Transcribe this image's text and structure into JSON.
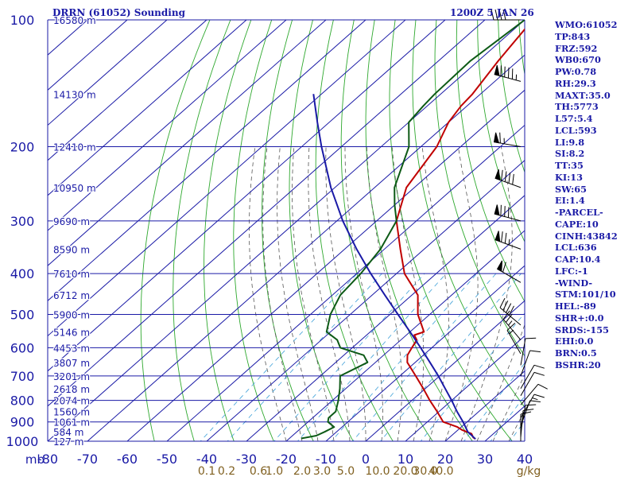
{
  "header": {
    "title_left": "DRRN (61052) Sounding",
    "title_right": "1200Z  5 JAN 26"
  },
  "colors": {
    "grid": "#1a1aa6",
    "temperature": "#c00000",
    "dewpoint": "#0d5a16",
    "parcel": "#1a1aa6",
    "dry_adiabat": "#2ea82e",
    "moist_adiabat": "#555555",
    "mixing_ratio": "#3ea0d8",
    "mixing_label": "#806020",
    "label": "#1a1aa6"
  },
  "indices": [
    "WMO:61052",
    "TP:843",
    "FRZ:592",
    "WB0:670",
    "PW:0.78",
    "RH:29.3",
    "MAXT:35.0",
    "TH:5773",
    "L57:5.4",
    "LCL:593",
    "LI:9.8",
    "SI:8.2",
    "TT:35",
    "KI:13",
    "SW:65",
    "EI:1.4",
    "-PARCEL-",
    "CAPE:10",
    "CINH:43842",
    "LCL:636",
    "CAP:10.4",
    "LFC:-1",
    "-WIND-",
    "STM:101/10",
    "HEL:-89",
    "SHR+:0.0",
    "SRDS:-155",
    "EHI:0.0",
    "BRN:0.5",
    "BSHR:20"
  ],
  "chart_data": {
    "type": "line",
    "title": "DRRN (61052) Sounding",
    "subtitle": "1200Z  5 JAN 26",
    "xlabel": "",
    "ylabel": "mb",
    "y_scale": "log",
    "x_range": [
      -80,
      40
    ],
    "p_range": [
      1000,
      100
    ],
    "skew_degrees_per_decade": 120,
    "grid": true,
    "pressure_levels": [
      100,
      200,
      300,
      400,
      500,
      600,
      700,
      800,
      900,
      1000
    ],
    "pressure_tick_labels": [
      "100",
      "200",
      "300",
      "400",
      "500",
      "600",
      "700",
      "800",
      "900",
      "1000"
    ],
    "temperature_ticks": [
      -80,
      -70,
      -60,
      -50,
      -40,
      -30,
      -20,
      -10,
      0,
      10,
      20,
      30,
      40
    ],
    "temperature_tick_labels": [
      "-80",
      "-70",
      "-60",
      "-50",
      "-40",
      "-30",
      "-20",
      "-10",
      "0",
      "10",
      "20",
      "30",
      "40"
    ],
    "mixing_ratio_ticks": [
      {
        "t": -40,
        "label": "0.1"
      },
      {
        "t": -35,
        "label": "0.2"
      },
      {
        "t": -27,
        "label": "0.6"
      },
      {
        "t": -23,
        "label": "1.0"
      },
      {
        "t": -16,
        "label": "2.0"
      },
      {
        "t": -11,
        "label": "3.0"
      },
      {
        "t": -5,
        "label": "5.0"
      },
      {
        "t": 3,
        "label": "10.0"
      },
      {
        "t": 10,
        "label": "20.0"
      },
      {
        "t": 15,
        "label": "30.0"
      },
      {
        "t": 19,
        "label": "40.0"
      }
    ],
    "units_label": "g/kg",
    "height_labels": [
      {
        "p": 100,
        "label": "16580 m"
      },
      {
        "p": 150,
        "label": "14130 m"
      },
      {
        "p": 200,
        "label": "12410 m"
      },
      {
        "p": 250,
        "label": "10950 m"
      },
      {
        "p": 300,
        "label": "9690 m"
      },
      {
        "p": 350,
        "label": "8590 m"
      },
      {
        "p": 400,
        "label": "7610 m"
      },
      {
        "p": 450,
        "label": "6712 m"
      },
      {
        "p": 500,
        "label": "5900 m"
      },
      {
        "p": 550,
        "label": "5146 m"
      },
      {
        "p": 600,
        "label": "4453 m"
      },
      {
        "p": 650,
        "label": "3807 m"
      },
      {
        "p": 700,
        "label": "3201 m"
      },
      {
        "p": 750,
        "label": "2618 m"
      },
      {
        "p": 800,
        "label": "2074 m"
      },
      {
        "p": 850,
        "label": "1560 m"
      },
      {
        "p": 900,
        "label": "1061 m"
      },
      {
        "p": 950,
        "label": "584 m"
      },
      {
        "p": 1000,
        "label": "127 m"
      }
    ],
    "series": [
      {
        "p": [
          988,
          980,
          960,
          940,
          925,
          900,
          850,
          800,
          750,
          700,
          650,
          625,
          600,
          575,
          560,
          550,
          500,
          450,
          400,
          350,
          300,
          250,
          200,
          175,
          160,
          150,
          125,
          100
        ],
        "t": [
          27,
          26,
          24.5,
          21,
          19,
          14,
          9.5,
          4.5,
          -0.5,
          -6,
          -12,
          -14,
          -15,
          -16,
          -18,
          -16.5,
          -23,
          -28.5,
          -38,
          -46,
          -55,
          -62,
          -66,
          -70,
          -71.5,
          -72,
          -75,
          -78
        ]
      },
      {
        "p": [
          985,
          970,
          950,
          925,
          900,
          880,
          850,
          800,
          750,
          700,
          650,
          625,
          600,
          575,
          550,
          500,
          450,
          400,
          350,
          300,
          275,
          250,
          200,
          175,
          160,
          150,
          125,
          100
        ],
        "t": [
          -17,
          -14,
          -13,
          -12,
          -15,
          -16,
          -16,
          -18.5,
          -21.5,
          -25,
          -22,
          -25,
          -33,
          -36,
          -41,
          -45,
          -48,
          -49,
          -51,
          -55,
          -60,
          -65,
          -73,
          -80,
          -81,
          -81.5,
          -82,
          -80
        ]
      },
      {
        "p": [
          988,
          950,
          900,
          850,
          800,
          750,
          700,
          650,
          600,
          550,
          500,
          450,
          400,
          350,
          300,
          250,
          200,
          175,
          150
        ],
        "t": [
          27,
          23,
          19,
          14.5,
          10,
          5,
          -0.3,
          -6.3,
          -12.8,
          -20,
          -28,
          -36.8,
          -46.5,
          -57,
          -68.5,
          -81,
          -95,
          -103,
          -112
        ]
      }
    ],
    "wind_barbs": [
      {
        "p": 100,
        "dir": 270,
        "spd": 40
      },
      {
        "p": 140,
        "dir": 285,
        "spd": 95
      },
      {
        "p": 200,
        "dir": 280,
        "spd": 65
      },
      {
        "p": 250,
        "dir": 290,
        "spd": 90
      },
      {
        "p": 300,
        "dir": 285,
        "spd": 80
      },
      {
        "p": 350,
        "dir": 290,
        "spd": 75
      },
      {
        "p": 420,
        "dir": 300,
        "spd": 60
      },
      {
        "p": 530,
        "dir": 310,
        "spd": 40
      },
      {
        "p": 575,
        "dir": 320,
        "spd": 25
      },
      {
        "p": 620,
        "dir": 330,
        "spd": 15
      },
      {
        "p": 660,
        "dir": 10,
        "spd": 10
      },
      {
        "p": 700,
        "dir": 20,
        "spd": 10
      },
      {
        "p": 750,
        "dir": 30,
        "spd": 10
      },
      {
        "p": 780,
        "dir": 30,
        "spd": 10
      },
      {
        "p": 820,
        "dir": 40,
        "spd": 10
      },
      {
        "p": 880,
        "dir": 30,
        "spd": 15
      },
      {
        "p": 920,
        "dir": 20,
        "spd": 10
      },
      {
        "p": 950,
        "dir": 10,
        "spd": 10
      },
      {
        "p": 980,
        "dir": 5,
        "spd": 10
      },
      {
        "p": 1000,
        "dir": 0,
        "spd": 10
      }
    ]
  }
}
